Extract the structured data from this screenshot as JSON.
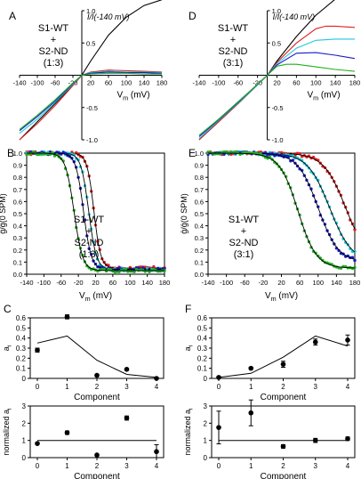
{
  "chart_data": [
    {
      "id": "A",
      "type": "line",
      "panel_label": "A",
      "annotation": [
        "S1-WT",
        "+",
        "S2-ND",
        "(1:3)"
      ],
      "ylabel": "I/I(-140 mV)",
      "xlabel": "V",
      "xlabel_sub": "m",
      "xlabel_unit": " (mV)",
      "xlim": [
        -140,
        180
      ],
      "ylim": [
        -1.0,
        1.0
      ],
      "x_ticks": [
        -140,
        -100,
        -60,
        -20,
        20,
        60,
        100,
        140,
        180
      ],
      "x_tick_labels": [
        "-140",
        "-100",
        "-60",
        "-20",
        "20",
        "60",
        "100",
        "140",
        "180"
      ],
      "y_ticks": [
        -1.0,
        -0.5,
        0.0,
        0.5,
        1.0
      ],
      "y_tick_labels": [
        "-1.0",
        "-0.5",
        "0.0",
        "0.5",
        "1.0"
      ],
      "series": [
        {
          "color": "#000000",
          "x": [
            -140,
            -100,
            -60,
            -20,
            0,
            20,
            60,
            100,
            140,
            180
          ],
          "y": [
            -1.0,
            -0.72,
            -0.44,
            -0.15,
            0,
            0.22,
            0.62,
            0.9,
            1.08,
            1.17
          ]
        },
        {
          "color": "#e02020",
          "x": [
            -140,
            -100,
            -60,
            -20,
            0,
            20,
            60,
            100,
            140,
            180
          ],
          "y": [
            -1.0,
            -0.75,
            -0.47,
            -0.16,
            0,
            0.05,
            0.08,
            0.07,
            0.06,
            0.05
          ]
        },
        {
          "color": "#20c8d8",
          "x": [
            -140,
            -100,
            -60,
            -20,
            0,
            20,
            60,
            100,
            140,
            180
          ],
          "y": [
            -0.9,
            -0.68,
            -0.42,
            -0.14,
            0,
            0.04,
            0.06,
            0.05,
            0.05,
            0.04
          ]
        },
        {
          "color": "#1a1acc",
          "x": [
            -140,
            -100,
            -60,
            -20,
            0,
            20,
            60,
            100,
            140,
            180
          ],
          "y": [
            -0.86,
            -0.64,
            -0.4,
            -0.13,
            0,
            0.03,
            0.05,
            0.04,
            0.04,
            0.03
          ]
        },
        {
          "color": "#20b020",
          "x": [
            -140,
            -100,
            -60,
            -20,
            0,
            20,
            60,
            100,
            140,
            180
          ],
          "y": [
            -0.84,
            -0.62,
            -0.38,
            -0.12,
            0,
            0.02,
            0.03,
            0.03,
            0.02,
            0.02
          ]
        }
      ]
    },
    {
      "id": "D",
      "type": "line",
      "panel_label": "D",
      "annotation": [
        "S1-WT",
        "+",
        "S2-ND",
        "(3:1)"
      ],
      "ylabel": "I/I(-140 mV)",
      "xlabel": "V",
      "xlabel_sub": "m",
      "xlabel_unit": " (mV)",
      "xlim": [
        -140,
        180
      ],
      "ylim": [
        -1.0,
        1.0
      ],
      "x_ticks": [
        -140,
        -100,
        -60,
        -20,
        20,
        60,
        100,
        140,
        180
      ],
      "x_tick_labels": [
        "-140",
        "-100",
        "-60",
        "-20",
        "20",
        "60",
        "100",
        "140",
        "180"
      ],
      "y_ticks": [
        -1.0,
        -0.5,
        0.0,
        0.5,
        1.0
      ],
      "y_tick_labels": [
        "-1.0",
        "-0.5",
        "0.0",
        "0.5",
        "1.0"
      ],
      "series": [
        {
          "color": "#000000",
          "x": [
            -140,
            -100,
            -60,
            -20,
            0,
            20,
            60,
            100,
            140,
            180
          ],
          "y": [
            -1.0,
            -0.72,
            -0.44,
            -0.15,
            0,
            0.22,
            0.6,
            0.93,
            1.18,
            1.35
          ]
        },
        {
          "color": "#e02020",
          "x": [
            -140,
            -100,
            -60,
            -20,
            0,
            20,
            60,
            100,
            120,
            140,
            180
          ],
          "y": [
            -1.0,
            -0.72,
            -0.44,
            -0.15,
            0,
            0.2,
            0.5,
            0.72,
            0.76,
            0.76,
            0.74
          ]
        },
        {
          "color": "#20c8d8",
          "x": [
            -140,
            -100,
            -60,
            -20,
            0,
            20,
            60,
            100,
            140,
            180
          ],
          "y": [
            -0.98,
            -0.7,
            -0.43,
            -0.15,
            0,
            0.18,
            0.42,
            0.54,
            0.56,
            0.56
          ]
        },
        {
          "color": "#1a1acc",
          "x": [
            -140,
            -100,
            -60,
            -20,
            0,
            20,
            60,
            100,
            140,
            180
          ],
          "y": [
            -0.95,
            -0.69,
            -0.42,
            -0.14,
            0,
            0.16,
            0.34,
            0.35,
            0.31,
            0.26
          ]
        },
        {
          "color": "#20b020",
          "x": [
            -140,
            -100,
            -60,
            -20,
            0,
            20,
            40,
            60,
            100,
            140,
            180
          ],
          "y": [
            -0.93,
            -0.68,
            -0.41,
            -0.14,
            0,
            0.14,
            0.17,
            0.17,
            0.13,
            0.09,
            0.06
          ]
        }
      ]
    },
    {
      "id": "B",
      "type": "scatter",
      "panel_label": "B",
      "annotation": [
        "S1-WT",
        "+",
        "S2-ND",
        "(1:3)"
      ],
      "ylabel": "ĝ/ĝ(0 SPM)",
      "xlabel": "V",
      "xlabel_sub": "m",
      "xlabel_unit": " (mV)",
      "xlim": [
        -140,
        180
      ],
      "ylim": [
        0.0,
        1.0
      ],
      "x_ticks": [
        -140,
        -100,
        -60,
        -20,
        20,
        60,
        100,
        140,
        180
      ],
      "x_tick_labels": [
        "-140",
        "-100",
        "-60",
        "-20",
        "20",
        "60",
        "100",
        "140",
        "180"
      ],
      "y_ticks": [
        0.0,
        0.1,
        0.2,
        0.3,
        0.4,
        0.5,
        0.6,
        0.7,
        0.8,
        0.9,
        1.0
      ],
      "y_tick_labels": [
        "0.0",
        "0.1",
        "0.2",
        "0.3",
        "0.4",
        "0.5",
        "0.6",
        "0.7",
        "0.8",
        "0.9",
        "1.0"
      ],
      "series": [
        {
          "color": "#e02020",
          "v50": 16,
          "k": 8,
          "floor": 0.05
        },
        {
          "color": "#20c8d8",
          "v50": 4,
          "k": 9,
          "floor": 0.04
        },
        {
          "color": "#1a1acc",
          "v50": -8,
          "k": 9,
          "floor": 0.04
        },
        {
          "color": "#20b020",
          "v50": -30,
          "k": 10,
          "floor": 0.03
        }
      ]
    },
    {
      "id": "E",
      "type": "scatter",
      "panel_label": "E",
      "annotation": [
        "S1-WT",
        "+",
        "S2-ND",
        "(3:1)"
      ],
      "ylabel": "ĝ/ĝ(0 SPM)",
      "xlabel": "V",
      "xlabel_sub": "m",
      "xlabel_unit": " (mV)",
      "xlim": [
        -140,
        180
      ],
      "ylim": [
        0.0,
        1.0
      ],
      "x_ticks": [
        -140,
        -100,
        -60,
        -20,
        20,
        60,
        100,
        140,
        180
      ],
      "x_tick_labels": [
        "-140",
        "-100",
        "-60",
        "-20",
        "20",
        "60",
        "100",
        "140",
        "180"
      ],
      "y_ticks": [
        0.0,
        0.1,
        0.2,
        0.3,
        0.4,
        0.5,
        0.6,
        0.7,
        0.8,
        0.9,
        1.0
      ],
      "y_tick_labels": [
        "0.0",
        "0.1",
        "0.2",
        "0.3",
        "0.4",
        "0.5",
        "0.6",
        "0.7",
        "0.8",
        "0.9",
        "1.0"
      ],
      "series": [
        {
          "color": "#e02020",
          "v50": 160,
          "k": 24,
          "floor": 0.1
        },
        {
          "color": "#20c8d8",
          "v50": 125,
          "k": 24,
          "floor": 0.1
        },
        {
          "color": "#1a1acc",
          "v50": 100,
          "k": 22,
          "floor": 0.1
        },
        {
          "color": "#20b020",
          "v50": 56,
          "k": 20,
          "floor": 0.05
        }
      ]
    },
    {
      "id": "C_top",
      "type": "scatter",
      "panel_label": "C",
      "ylabel": "a",
      "ylabel_sub": "i",
      "xlabel": "Component",
      "xlim": [
        0,
        4
      ],
      "ylim": [
        0,
        0.6
      ],
      "x_ticks": [
        0,
        1,
        2,
        3,
        4
      ],
      "x_tick_labels": [
        "0",
        "1",
        "2",
        "3",
        "4"
      ],
      "y_ticks": [
        0,
        0.1,
        0.2,
        0.3,
        0.4,
        0.5,
        0.6
      ],
      "y_tick_labels": [
        "0",
        "0.1",
        "0.2",
        "0.3",
        "0.4",
        "0.5",
        "0.6"
      ],
      "points": {
        "x": [
          0,
          1,
          2,
          3,
          4
        ],
        "y": [
          0.28,
          0.61,
          0.03,
          0.09,
          0.0
        ],
        "err": [
          0.02,
          0.02,
          0.01,
          0.01,
          0.01
        ]
      },
      "line": {
        "x": [
          0,
          1,
          2,
          3,
          4
        ],
        "y": [
          0.35,
          0.42,
          0.18,
          0.04,
          0.01
        ]
      }
    },
    {
      "id": "C_bottom",
      "type": "scatter",
      "ylabel": "normalized a",
      "ylabel_sub": "i",
      "xlabel": "Component",
      "xlim": [
        0,
        4
      ],
      "ylim": [
        0,
        3
      ],
      "x_ticks": [
        0,
        1,
        2,
        3,
        4
      ],
      "x_tick_labels": [
        "0",
        "1",
        "2",
        "3",
        "4"
      ],
      "y_ticks": [
        0,
        1,
        2,
        3
      ],
      "y_tick_labels": [
        "0",
        "1",
        "2",
        "3"
      ],
      "points": {
        "x": [
          0,
          1,
          2,
          3,
          4
        ],
        "y": [
          0.82,
          1.45,
          0.15,
          2.3,
          0.35
        ],
        "err": [
          0.05,
          0.1,
          0.05,
          0.12,
          0.4
        ]
      },
      "line": {
        "x": [
          0,
          4
        ],
        "y": [
          1,
          1
        ]
      }
    },
    {
      "id": "F_top",
      "type": "scatter",
      "panel_label": "F",
      "ylabel": "a",
      "ylabel_sub": "i",
      "xlabel": "Component",
      "xlim": [
        0,
        4
      ],
      "ylim": [
        0,
        0.6
      ],
      "x_ticks": [
        0,
        1,
        2,
        3,
        4
      ],
      "x_tick_labels": [
        "0",
        "1",
        "2",
        "3",
        "4"
      ],
      "y_ticks": [
        0,
        0.1,
        0.2,
        0.3,
        0.4,
        0.5,
        0.6
      ],
      "y_tick_labels": [
        "0",
        "0.1",
        "0.2",
        "0.3",
        "0.4",
        "0.5",
        "0.6"
      ],
      "points": {
        "x": [
          0,
          1,
          2,
          3,
          4
        ],
        "y": [
          0.01,
          0.1,
          0.14,
          0.36,
          0.38
        ],
        "err": [
          0.01,
          0.01,
          0.03,
          0.03,
          0.05
        ]
      },
      "line": {
        "x": [
          0,
          1,
          2,
          3,
          4
        ],
        "y": [
          0.01,
          0.05,
          0.21,
          0.42,
          0.32
        ]
      }
    },
    {
      "id": "F_bottom",
      "type": "scatter",
      "ylabel": "normalized a",
      "ylabel_sub": "i",
      "xlabel": "Component",
      "xlim": [
        0,
        4
      ],
      "ylim": [
        0,
        3
      ],
      "x_ticks": [
        0,
        1,
        2,
        3,
        4
      ],
      "x_tick_labels": [
        "0",
        "1",
        "2",
        "3",
        "4"
      ],
      "y_ticks": [
        0,
        1,
        2,
        3
      ],
      "y_tick_labels": [
        "0",
        "1",
        "2",
        "3"
      ],
      "points": {
        "x": [
          0,
          1,
          2,
          3,
          4
        ],
        "y": [
          1.75,
          2.6,
          0.65,
          1.0,
          1.1
        ],
        "err": [
          0.95,
          0.75,
          0.1,
          0.12,
          0.1
        ]
      },
      "line": {
        "x": [
          0,
          4
        ],
        "y": [
          1,
          1
        ]
      }
    }
  ]
}
